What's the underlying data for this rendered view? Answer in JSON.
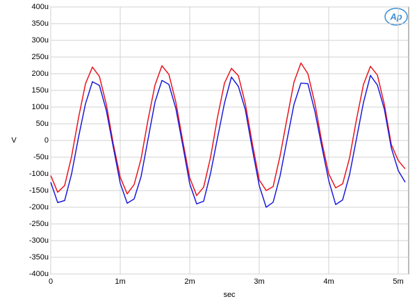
{
  "chart_data": {
    "type": "line",
    "logo": "Ap",
    "xlabel": "sec",
    "ylabel": "V",
    "grid": true,
    "xlim": [
      0,
      0.00515
    ],
    "ylim": [
      -0.0004,
      0.0004
    ],
    "xticks": [
      0,
      {
        "value": 0.001,
        "label": "1m"
      },
      {
        "value": 0.002,
        "label": "2m"
      },
      {
        "value": 0.003,
        "label": "3m"
      },
      {
        "value": 0.004,
        "label": "4m"
      },
      {
        "value": 0.005,
        "label": "5m"
      }
    ],
    "yticks": [
      {
        "value": 0.0004,
        "label": "400u"
      },
      {
        "value": 0.00035,
        "label": "350u"
      },
      {
        "value": 0.0003,
        "label": "300u"
      },
      {
        "value": 0.00025,
        "label": "250u"
      },
      {
        "value": 0.0002,
        "label": "200u"
      },
      {
        "value": 0.00015,
        "label": "150u"
      },
      {
        "value": 0.0001,
        "label": "100u"
      },
      {
        "value": 5e-05,
        "label": "50u"
      },
      0,
      {
        "value": -5e-05,
        "label": "-50u"
      },
      {
        "value": -0.0001,
        "label": "-100u"
      },
      {
        "value": -0.00015,
        "label": "-150u"
      },
      {
        "value": -0.0002,
        "label": "-200u"
      },
      {
        "value": -0.00025,
        "label": "-250u"
      },
      {
        "value": -0.0003,
        "label": "-300u"
      },
      {
        "value": -0.00035,
        "label": "-350u"
      },
      {
        "value": -0.0004,
        "label": "-400u"
      }
    ],
    "x": [
      0,
      0.0001,
      0.0002,
      0.0003,
      0.0004,
      0.0005,
      0.0006,
      0.0007,
      0.0008,
      0.0009,
      0.001,
      0.0011,
      0.0012,
      0.0013,
      0.0014,
      0.0015,
      0.0016,
      0.0017,
      0.0018,
      0.0019,
      0.002,
      0.0021,
      0.0022,
      0.0023,
      0.0024,
      0.0025,
      0.0026,
      0.0027,
      0.0028,
      0.0029,
      0.003,
      0.0031,
      0.0032,
      0.0033,
      0.0034,
      0.0035,
      0.0036,
      0.0037,
      0.0038,
      0.0039,
      0.004,
      0.0041,
      0.0042,
      0.0043,
      0.0044,
      0.0045,
      0.0046,
      0.0047,
      0.0048,
      0.0049,
      0.005,
      0.0051
    ],
    "series": [
      {
        "color": "#e8141b",
        "values": [
          -0.000105,
          -0.000155,
          -0.000135,
          -4.8e-05,
          6.8e-05,
          0.00017,
          0.00022,
          0.000192,
          0.000108,
          -1e-05,
          -0.00011,
          -0.00016,
          -0.000132,
          -5.5e-05,
          6.2e-05,
          0.000166,
          0.000224,
          0.000198,
          0.000115,
          -2e-06,
          -0.000112,
          -0.000165,
          -0.00014,
          -5e-05,
          7e-05,
          0.000172,
          0.000216,
          0.000194,
          0.00011,
          -8e-06,
          -0.000118,
          -0.00015,
          -0.000138,
          -4.6e-05,
          6.6e-05,
          0.000175,
          0.000232,
          0.0002,
          0.000112,
          -4e-06,
          -0.0001,
          -0.000142,
          -0.00013,
          -5.2e-05,
          6.4e-05,
          0.000168,
          0.000222,
          0.000196,
          0.000108,
          -1.2e-05,
          -6e-05,
          -8.5e-05
        ]
      },
      {
        "color": "#1a1adc",
        "values": [
          -0.000125,
          -0.000186,
          -0.00018,
          -0.0001,
          1e-05,
          0.00011,
          0.000176,
          0.000165,
          9e-05,
          -2e-05,
          -0.000128,
          -0.000188,
          -0.000175,
          -0.000108,
          4e-06,
          0.000115,
          0.00018,
          0.000168,
          9.6e-05,
          -1.5e-05,
          -0.00013,
          -0.00019,
          -0.000182,
          -9.8e-05,
          8e-06,
          0.000112,
          0.00019,
          0.000162,
          9.2e-05,
          -2.5e-05,
          -0.000135,
          -0.0002,
          -0.000185,
          -0.000106,
          2e-06,
          0.000108,
          0.000172,
          0.00017,
          8.8e-05,
          -1.8e-05,
          -0.00012,
          -0.000192,
          -0.000178,
          -0.000102,
          6e-06,
          0.000114,
          0.000195,
          0.000166,
          9.4e-05,
          -2.2e-05,
          -9e-05,
          -0.000125
        ]
      }
    ]
  }
}
